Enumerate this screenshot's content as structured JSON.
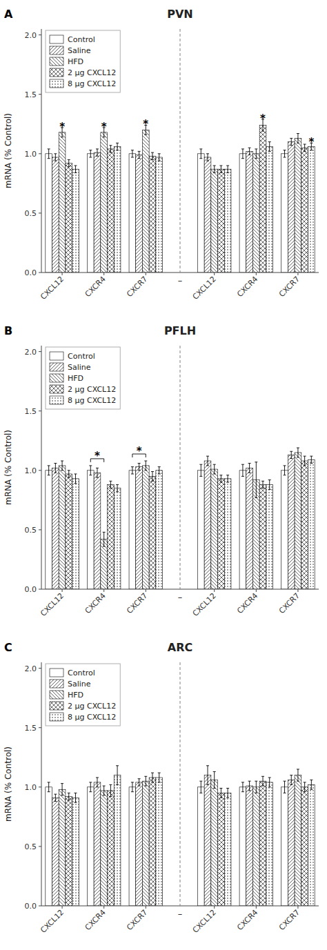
{
  "chart_data": [
    {
      "type": "bar",
      "title": "PVN",
      "ylabel": "mRNA (% Control)",
      "categories": [
        "CXCL12",
        "CXCR4",
        "CXCR7",
        "CXCL12",
        "CXCR4",
        "CXCR7"
      ],
      "series": [
        {
          "name": "Control",
          "color": "#ffffff",
          "values": [
            1.0,
            1.0,
            1.0,
            1.0,
            1.0,
            1.0
          ],
          "errors": [
            0.04,
            0.03,
            0.03,
            0.04,
            0.04,
            0.03
          ]
        },
        {
          "name": "Saline",
          "color": "#ffffff",
          "values": [
            0.97,
            1.01,
            0.99,
            0.97,
            1.02,
            1.1
          ],
          "errors": [
            0.03,
            0.03,
            0.03,
            0.03,
            0.03,
            0.03
          ]
        },
        {
          "name": "HFD",
          "color": "#ffffff",
          "values": [
            1.18,
            1.18,
            1.2,
            0.87,
            1.0,
            1.13
          ],
          "errors": [
            0.04,
            0.04,
            0.04,
            0.03,
            0.04,
            0.04
          ]
        },
        {
          "name": "2 μg CXCL12",
          "color": "#ffffff",
          "values": [
            0.92,
            1.04,
            0.98,
            0.87,
            1.24,
            1.05
          ],
          "errors": [
            0.03,
            0.03,
            0.03,
            0.03,
            0.05,
            0.03
          ]
        },
        {
          "name": "8 μg CXCL12",
          "color": "#ffffff",
          "values": [
            0.87,
            1.06,
            0.97,
            0.87,
            1.06,
            1.06
          ],
          "errors": [
            0.03,
            0.03,
            0.03,
            0.03,
            0.04,
            0.03
          ]
        }
      ],
      "annotations": [
        {
          "text": "A"
        },
        {
          "text": "–",
          "between": [
            2,
            3
          ]
        },
        {
          "text": "*",
          "category": 0,
          "series": 2
        },
        {
          "text": "*",
          "category": 1,
          "series": 2
        },
        {
          "text": "*",
          "category": 2,
          "series": 2
        },
        {
          "text": "*",
          "category": 4,
          "series": 3
        },
        {
          "text": "*",
          "category": 5,
          "series": 4
        }
      ],
      "ylim": [
        0.0,
        2.05
      ],
      "yticks": [
        {
          "value": 0.0,
          "label": "0.0"
        },
        0.5,
        {
          "value": 1.0,
          "label": "1.0"
        },
        1.5,
        {
          "value": 2.0,
          "label": "2.0"
        }
      ],
      "grid": false,
      "legend": "upper left"
    },
    {
      "type": "bar",
      "title": "PFLH",
      "ylabel": "mRNA (% Control)",
      "categories": [
        "CXCL12",
        "CXCR4",
        "CXCR7",
        "CXCL12",
        "CXCR4",
        "CXCR7"
      ],
      "series": [
        {
          "name": "Control",
          "color": "#ffffff",
          "values": [
            1.0,
            1.0,
            1.0,
            1.0,
            1.0,
            1.0
          ],
          "errors": [
            0.04,
            0.04,
            0.03,
            0.05,
            0.05,
            0.04
          ]
        },
        {
          "name": "Saline",
          "color": "#ffffff",
          "values": [
            1.02,
            0.98,
            1.03,
            1.08,
            1.02,
            1.13
          ],
          "errors": [
            0.04,
            0.04,
            0.03,
            0.04,
            0.04,
            0.03
          ]
        },
        {
          "name": "HFD",
          "color": "#ffffff",
          "values": [
            1.04,
            0.42,
            1.04,
            1.01,
            0.92,
            1.15
          ],
          "errors": [
            0.04,
            0.06,
            0.04,
            0.04,
            0.15,
            0.04
          ]
        },
        {
          "name": "2 μg CXCL12",
          "color": "#ffffff",
          "values": [
            0.97,
            0.88,
            0.95,
            0.93,
            0.88,
            1.08
          ],
          "errors": [
            0.03,
            0.03,
            0.04,
            0.03,
            0.03,
            0.04
          ]
        },
        {
          "name": "8 μg CXCL12",
          "color": "#ffffff",
          "values": [
            0.93,
            0.85,
            1.0,
            0.93,
            0.88,
            1.09
          ],
          "errors": [
            0.04,
            0.03,
            0.03,
            0.03,
            0.04,
            0.03
          ]
        }
      ],
      "annotations": [
        {
          "text": "B"
        },
        {
          "text": "–",
          "between": [
            2,
            3
          ]
        },
        {
          "text": "*",
          "category": 1,
          "series": [
            0,
            2
          ]
        },
        {
          "text": "*",
          "category": 2,
          "series": [
            0,
            2
          ]
        }
      ],
      "ylim": [
        0.0,
        2.05
      ],
      "yticks": [
        {
          "value": 0.0,
          "label": "0.0"
        },
        0.5,
        {
          "value": 1.0,
          "label": "1.0"
        },
        1.5,
        {
          "value": 2.0,
          "label": "2.0"
        }
      ],
      "grid": false,
      "legend": "upper left"
    },
    {
      "type": "bar",
      "title": "ARC",
      "ylabel": "mRNA (% Control)",
      "categories": [
        "CXCL12",
        "CXCR4",
        "CXCR7",
        "CXCL12",
        "CXCR4",
        "CXCR7"
      ],
      "series": [
        {
          "name": "Control",
          "color": "#ffffff",
          "values": [
            1.0,
            1.0,
            1.0,
            1.0,
            1.0,
            1.0
          ],
          "errors": [
            0.04,
            0.04,
            0.04,
            0.05,
            0.04,
            0.05
          ]
        },
        {
          "name": "Saline",
          "color": "#ffffff",
          "values": [
            0.91,
            1.04,
            1.04,
            1.1,
            1.01,
            1.06
          ],
          "errors": [
            0.03,
            0.04,
            0.03,
            0.08,
            0.04,
            0.04
          ]
        },
        {
          "name": "HFD",
          "color": "#ffffff",
          "values": [
            0.98,
            0.97,
            1.05,
            1.06,
            1.0,
            1.1
          ],
          "errors": [
            0.05,
            0.04,
            0.04,
            0.07,
            0.05,
            0.05
          ]
        },
        {
          "name": "2 μg CXCL12",
          "color": "#ffffff",
          "values": [
            0.92,
            0.97,
            1.08,
            0.95,
            1.05,
            1.0
          ],
          "errors": [
            0.03,
            0.05,
            0.04,
            0.04,
            0.04,
            0.04
          ]
        },
        {
          "name": "8 μg CXCL12",
          "color": "#ffffff",
          "values": [
            0.91,
            1.1,
            1.08,
            0.95,
            1.04,
            1.02
          ],
          "errors": [
            0.04,
            0.08,
            0.04,
            0.04,
            0.04,
            0.04
          ]
        }
      ],
      "annotations": [
        {
          "text": "C"
        },
        {
          "text": "–",
          "between": [
            2,
            3
          ]
        }
      ],
      "ylim": [
        0.0,
        2.05
      ],
      "yticks": [
        {
          "value": 0.0,
          "label": "0.0"
        },
        0.5,
        {
          "value": 1.0,
          "label": "1.0"
        },
        1.5,
        {
          "value": 2.0,
          "label": "2.0"
        }
      ],
      "grid": false,
      "legend": "upper left"
    }
  ]
}
